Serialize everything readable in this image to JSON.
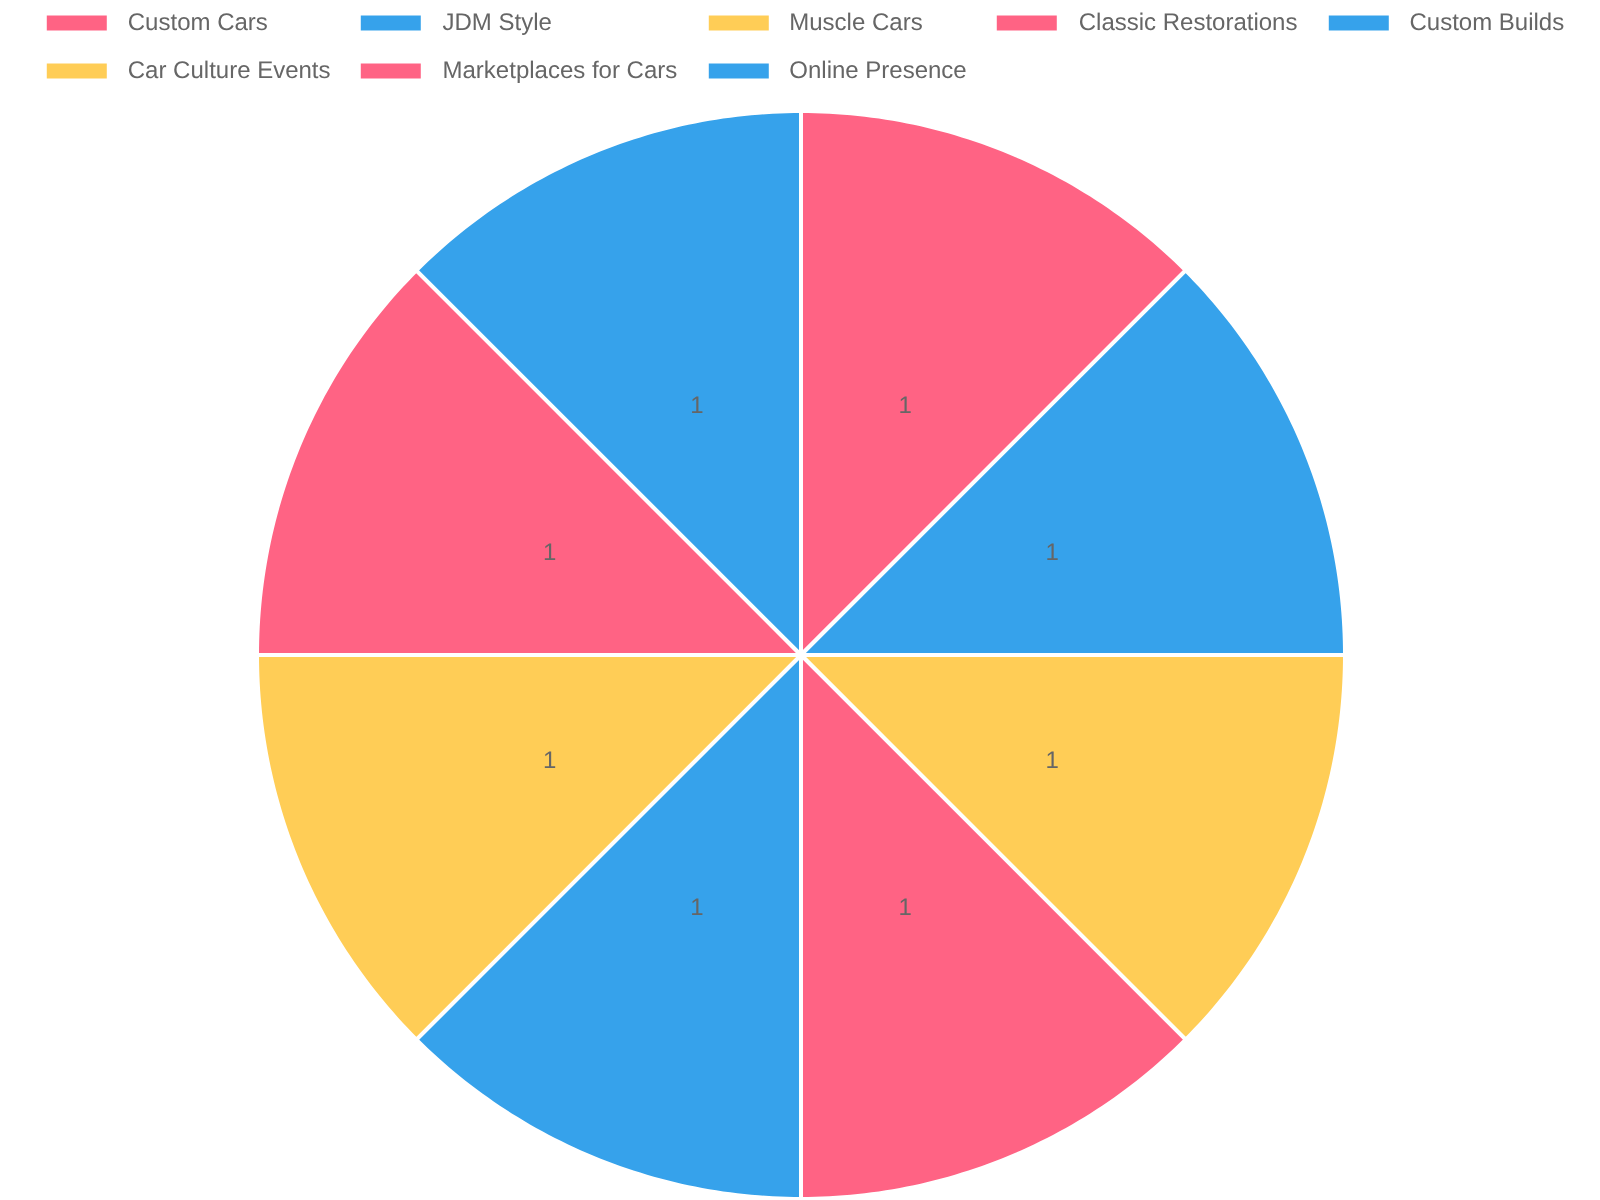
{
  "chart_data": {
    "type": "pie",
    "categories": [
      "Custom Cars",
      "JDM Style",
      "Muscle Cars",
      "Classic Restorations",
      "Custom Builds",
      "Car Culture Events",
      "Marketplaces for Cars",
      "Online Presence"
    ],
    "values": [
      1,
      1,
      1,
      1,
      1,
      1,
      1,
      1
    ],
    "colors": [
      "#ff6384",
      "#36a2eb",
      "#ffcd56",
      "#ff6384",
      "#36a2eb",
      "#ffcd56",
      "#ff6384",
      "#36a2eb"
    ],
    "data_labels": true,
    "legend": "top"
  }
}
